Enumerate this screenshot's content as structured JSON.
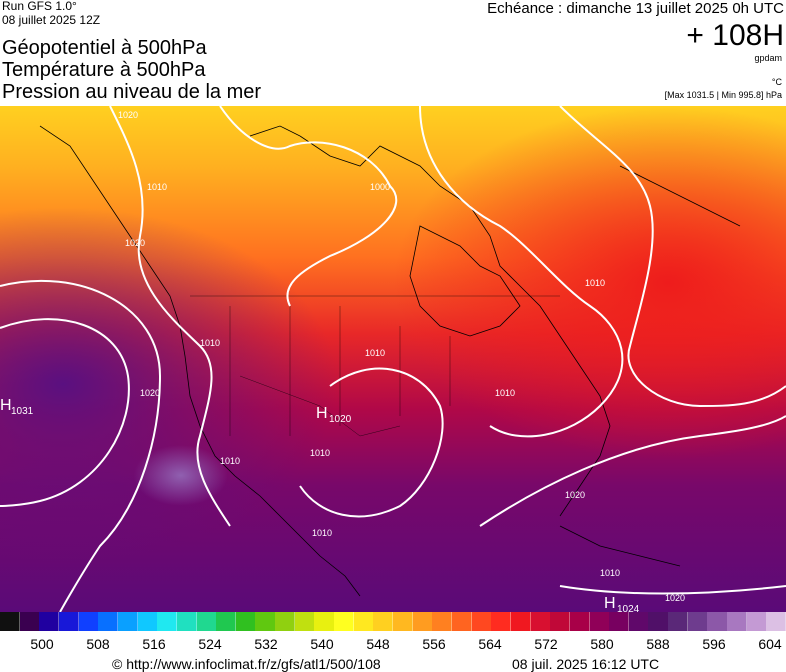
{
  "header": {
    "run": "Run GFS 1.0°",
    "run_date": "08 juillet 2025 12Z",
    "titles": [
      "Géopotentiel à 500hPa",
      "Température à 500hPa",
      "Pression au niveau de la mer"
    ],
    "echeance": "Echéance : dimanche 13 juillet 2025 0h UTC",
    "forecast_hour": "+ 108H",
    "unit_gpdam": "gpdam",
    "unit_c": "°C",
    "minmax": "[Max 1031.5 | Min 995.8] hPa"
  },
  "map": {
    "isobar_labels": [
      "1000",
      "1010",
      "1010",
      "1010",
      "1010",
      "1010",
      "1010",
      "1010",
      "1010",
      "1010",
      "1020",
      "1020",
      "1020",
      "1020",
      "1020"
    ],
    "pressure_centers": [
      {
        "symbol": "H",
        "value": "1031"
      },
      {
        "symbol": "H",
        "value": "1020"
      },
      {
        "symbol": "H",
        "value": "1024"
      }
    ],
    "colors": {
      "cold": "#ffe020",
      "warm": "#ee2020",
      "hot": "#6e0a78",
      "isobar": "#ffffff"
    }
  },
  "colorbar": {
    "ticks": [
      "500",
      "508",
      "516",
      "524",
      "532",
      "540",
      "548",
      "556",
      "564",
      "572",
      "580",
      "588",
      "596",
      "604"
    ],
    "colors": [
      "#101010",
      "#3a0050",
      "#2000a0",
      "#1818d8",
      "#1040ff",
      "#0870ff",
      "#0aa0ff",
      "#10c8ff",
      "#20e8f0",
      "#20e0c0",
      "#20d890",
      "#20c850",
      "#30c020",
      "#60c810",
      "#90d010",
      "#c0e010",
      "#e8f010",
      "#ffff20",
      "#ffe820",
      "#ffd020",
      "#ffb820",
      "#ff9c20",
      "#ff8020",
      "#ff6420",
      "#ff4820",
      "#ff2c20",
      "#f01820",
      "#d81030",
      "#c00838",
      "#a80048",
      "#900058",
      "#780060",
      "#60086a",
      "#501068",
      "#5a2878",
      "#6e3c8e",
      "#8c58a8",
      "#a878c0",
      "#c49ad4",
      "#dcc0e4"
    ]
  },
  "footer": {
    "url": "© http://www.infoclimat.fr/z/gfs/atl1/500/108",
    "timestamp": "08 juil. 2025 16:12 UTC"
  }
}
